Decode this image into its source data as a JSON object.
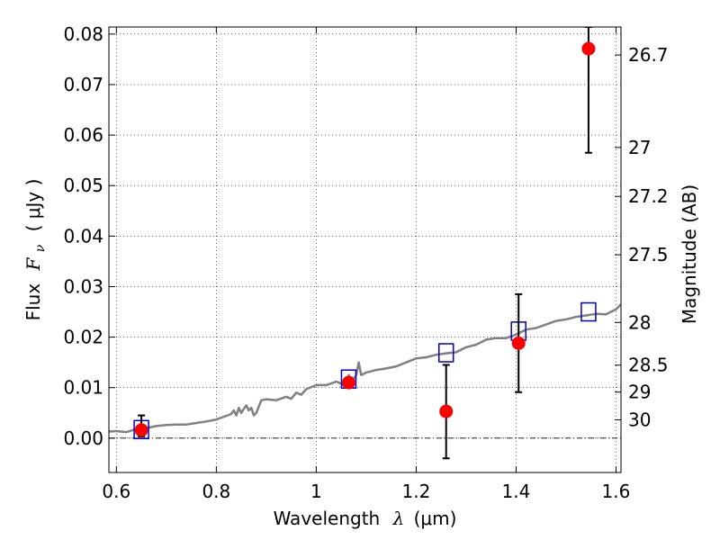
{
  "chart_data": {
    "type": "scatter",
    "xlabel": {
      "prefix": "Wavelength",
      "symbol": "λ",
      "unit": "(μm)"
    },
    "ylabel": {
      "prefix": "Flux",
      "symbol": "F",
      "subscript": "ν",
      "unit": "( μJy )"
    },
    "y2label": "Magnitude (AB)",
    "xlim": [
      0.585,
      1.61
    ],
    "ylim": [
      -0.0068,
      0.0814
    ],
    "x_ticks": [
      {
        "value": 0.6,
        "label": "0.6"
      },
      {
        "value": 0.8,
        "label": "0.8"
      },
      {
        "value": 1.0,
        "label": "1"
      },
      {
        "value": 1.2,
        "label": "1.2"
      },
      {
        "value": 1.4,
        "label": "1.4"
      },
      {
        "value": 1.6,
        "label": "1.6"
      }
    ],
    "y_ticks": [
      {
        "value": 0.0,
        "label": "0.00"
      },
      {
        "value": 0.01,
        "label": "0.01"
      },
      {
        "value": 0.02,
        "label": "0.02"
      },
      {
        "value": 0.03,
        "label": "0.03"
      },
      {
        "value": 0.04,
        "label": "0.04"
      },
      {
        "value": 0.05,
        "label": "0.05"
      },
      {
        "value": 0.06,
        "label": "0.06"
      },
      {
        "value": 0.07,
        "label": "0.07"
      },
      {
        "value": 0.08,
        "label": "0.08"
      }
    ],
    "y2_ticks": [
      {
        "value": 26.7,
        "label": "26.7"
      },
      {
        "value": 27.0,
        "label": "27"
      },
      {
        "value": 27.2,
        "label": "27.2"
      },
      {
        "value": 27.5,
        "label": "27.5"
      },
      {
        "value": 28.0,
        "label": "28"
      },
      {
        "value": 28.5,
        "label": "28.5"
      },
      {
        "value": 29.0,
        "label": "29"
      },
      {
        "value": 30.0,
        "label": "30"
      }
    ],
    "grid": true,
    "zero_line": 0.0,
    "series": [
      {
        "kind": "line",
        "color": "#808080",
        "x": [
          0.585,
          0.6,
          0.62,
          0.64,
          0.66,
          0.68,
          0.7,
          0.72,
          0.74,
          0.76,
          0.78,
          0.8,
          0.82,
          0.83,
          0.835,
          0.84,
          0.845,
          0.85,
          0.855,
          0.86,
          0.865,
          0.87,
          0.875,
          0.88,
          0.89,
          0.9,
          0.92,
          0.94,
          0.95,
          0.96,
          0.97,
          0.98,
          1.0,
          1.02,
          1.04,
          1.05,
          1.06,
          1.065,
          1.07,
          1.08,
          1.085,
          1.09,
          1.1,
          1.12,
          1.14,
          1.16,
          1.18,
          1.2,
          1.22,
          1.24,
          1.26,
          1.28,
          1.3,
          1.32,
          1.34,
          1.36,
          1.38,
          1.4,
          1.42,
          1.44,
          1.46,
          1.48,
          1.5,
          1.52,
          1.54,
          1.56,
          1.58,
          1.6,
          1.61
        ],
        "y": [
          0.0013,
          0.0014,
          0.0012,
          0.0018,
          0.002,
          0.0024,
          0.0026,
          0.0027,
          0.0027,
          0.003,
          0.0033,
          0.0037,
          0.0044,
          0.0048,
          0.0055,
          0.0045,
          0.006,
          0.005,
          0.0058,
          0.0065,
          0.0055,
          0.006,
          0.0045,
          0.005,
          0.0075,
          0.0077,
          0.0075,
          0.0082,
          0.0078,
          0.009,
          0.0086,
          0.0097,
          0.0105,
          0.0105,
          0.0112,
          0.0108,
          0.01,
          0.0125,
          0.011,
          0.0125,
          0.015,
          0.0125,
          0.013,
          0.0135,
          0.0138,
          0.0142,
          0.015,
          0.0158,
          0.016,
          0.0165,
          0.0168,
          0.017,
          0.018,
          0.0185,
          0.0195,
          0.0198,
          0.0198,
          0.0205,
          0.0215,
          0.0218,
          0.0225,
          0.0232,
          0.0235,
          0.024,
          0.0243,
          0.0246,
          0.0245,
          0.0255,
          0.0265
        ]
      },
      {
        "kind": "squares",
        "color": "#0000cc",
        "x": [
          0.65,
          1.065,
          1.26,
          1.405,
          1.545
        ],
        "y": [
          0.0017,
          0.0117,
          0.0169,
          0.0212,
          0.025
        ]
      },
      {
        "kind": "points",
        "color": "#ff0000",
        "x": [
          0.65,
          1.065,
          1.26,
          1.405,
          1.545
        ],
        "y": [
          0.0016,
          0.011,
          0.0053,
          0.0188,
          0.0771
        ],
        "yerr_low": [
          0.0013,
          0.001,
          0.0093,
          0.0097,
          0.0206
        ],
        "yerr_high": [
          0.0029,
          0.001,
          0.0092,
          0.0097,
          0.0043
        ]
      }
    ]
  }
}
